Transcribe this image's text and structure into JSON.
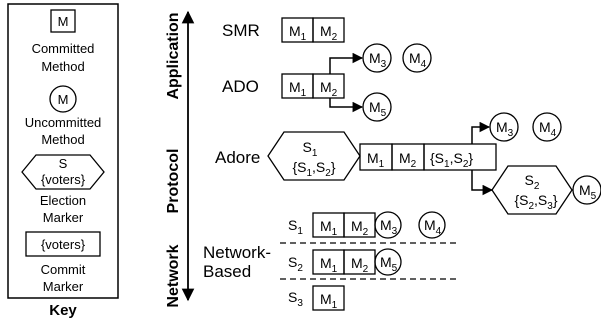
{
  "key": {
    "title": "Key",
    "committed_symbol": "M",
    "committed_label": [
      "Committed",
      "Method"
    ],
    "uncommitted_symbol": "M",
    "uncommitted_label": [
      "Uncommitted",
      "Method"
    ],
    "election_symbol": [
      "S",
      "{voters}"
    ],
    "election_label": [
      "Election",
      "Marker"
    ],
    "commit_symbol": "{voters}",
    "commit_label": [
      "Commit",
      "Marker"
    ]
  },
  "layers": {
    "application": "Application",
    "protocol": "Protocol",
    "network": "Network"
  },
  "rows": {
    "smr": "SMR",
    "ado": "ADO",
    "adore": "Adore",
    "network_based": [
      "Network-",
      "Based"
    ]
  },
  "methods": {
    "m1": "M",
    "m1_sub": "1",
    "m2": "M",
    "m2_sub": "2",
    "m3": "M",
    "m3_sub": "3",
    "m4": "M",
    "m4_sub": "4",
    "m5": "M",
    "m5_sub": "5"
  },
  "adore": {
    "election1_top": "S",
    "election1_top_sub": "1",
    "election1_bottom": "{S",
    "election1_bottom_sub1": "1",
    "election1_bottom_mid": ",S",
    "election1_bottom_sub2": "2",
    "election1_bottom_end": "}",
    "commit": "{S",
    "commit_sub1": "1",
    "commit_mid": ",S",
    "commit_sub2": "2",
    "commit_end": "}",
    "election2_top": "S",
    "election2_top_sub": "2",
    "election2_bottom": "{S",
    "election2_bottom_sub1": "2",
    "election2_bottom_mid": ",S",
    "election2_bottom_sub2": "3",
    "election2_bottom_end": "}"
  },
  "servers": {
    "s1": "S",
    "s1_sub": "1",
    "s2": "S",
    "s2_sub": "2",
    "s3": "S",
    "s3_sub": "3"
  }
}
